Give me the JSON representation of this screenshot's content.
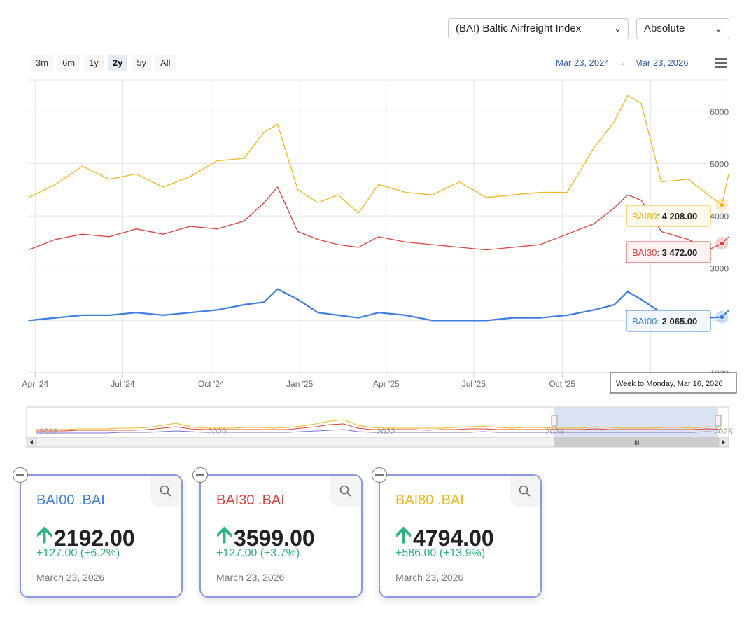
{
  "controls": {
    "index_select": "(BAI) Baltic Airfreight Index",
    "mode_select": "Absolute",
    "ranges": [
      "3m",
      "6m",
      "1y",
      "2y",
      "5y",
      "All"
    ],
    "active_range": "2y",
    "date_from": "Mar 23, 2024",
    "date_arrow": "→",
    "date_to": "Mar 23, 2026"
  },
  "tooltip": "Week to Monday, Mar 16, 2026",
  "labels": {
    "bai80": {
      "name": "BAI80",
      "value": "4 208.00"
    },
    "bai30": {
      "name": "BAI30",
      "value": "3 472.00"
    },
    "bai00": {
      "name": "BAI00",
      "value": "2 065.00"
    }
  },
  "navigator_years": [
    "2018",
    "2020",
    "2022",
    "2024",
    "2026"
  ],
  "cards": [
    {
      "name": "BAI00 .BAI",
      "value": "2192.00",
      "change": "+127.00 (+6.2%)",
      "date": "March 23, 2026",
      "color": "#3f7fe0"
    },
    {
      "name": "BAI30 .BAI",
      "value": "3599.00",
      "change": "+127.00 (+3.7%)",
      "date": "March 23, 2026",
      "color": "#e0403a"
    },
    {
      "name": "BAI80 .BAI",
      "value": "4794.00",
      "change": "+586.00 (+13.9%)",
      "date": "March 23, 2026",
      "color": "#f2b61f"
    }
  ],
  "chart_data": {
    "type": "line",
    "x": [
      "2024-03-25",
      "2024-04-22",
      "2024-05-20",
      "2024-06-17",
      "2024-07-15",
      "2024-08-12",
      "2024-09-09",
      "2024-10-07",
      "2024-11-04",
      "2024-11-25",
      "2024-12-09",
      "2024-12-30",
      "2025-01-20",
      "2025-02-10",
      "2025-03-03",
      "2025-03-24",
      "2025-04-21",
      "2025-05-19",
      "2025-06-16",
      "2025-07-14",
      "2025-08-11",
      "2025-09-08",
      "2025-10-06",
      "2025-11-03",
      "2025-11-24",
      "2025-12-08",
      "2025-12-22",
      "2026-01-12",
      "2026-02-09",
      "2026-03-02",
      "2026-03-16",
      "2026-03-23"
    ],
    "x_ticks": [
      "Apr '24",
      "Jul '24",
      "Oct '24",
      "Jan '25",
      "Apr '25",
      "Jul '25",
      "Oct '25"
    ],
    "y_ticks": [
      1000,
      3000,
      4000,
      5000,
      6000
    ],
    "ylim": [
      1000,
      6600
    ],
    "grid": true,
    "series": [
      {
        "name": "BAI80",
        "color": "#f2b61f",
        "values": [
          4350,
          4600,
          4950,
          4700,
          4800,
          4550,
          4750,
          5050,
          5100,
          5600,
          5750,
          4500,
          4250,
          4400,
          4050,
          4600,
          4450,
          4400,
          4650,
          4350,
          4400,
          4450,
          4450,
          5300,
          5800,
          6300,
          6150,
          4650,
          4700,
          4400,
          4208,
          4794
        ]
      },
      {
        "name": "BAI30",
        "color": "#e0403a",
        "values": [
          3350,
          3550,
          3650,
          3600,
          3750,
          3650,
          3800,
          3750,
          3900,
          4250,
          4550,
          3700,
          3550,
          3450,
          3400,
          3600,
          3500,
          3450,
          3400,
          3350,
          3400,
          3450,
          3650,
          3850,
          4150,
          4400,
          4300,
          3700,
          3550,
          3350,
          3472,
          3599
        ]
      },
      {
        "name": "BAI00",
        "color": "#3f7fe0",
        "values": [
          2000,
          2050,
          2100,
          2100,
          2150,
          2100,
          2150,
          2200,
          2300,
          2350,
          2600,
          2400,
          2150,
          2100,
          2050,
          2150,
          2100,
          2000,
          2000,
          2000,
          2050,
          2050,
          2100,
          2200,
          2300,
          2550,
          2400,
          2150,
          2100,
          2050,
          2065,
          2192
        ]
      }
    ]
  }
}
